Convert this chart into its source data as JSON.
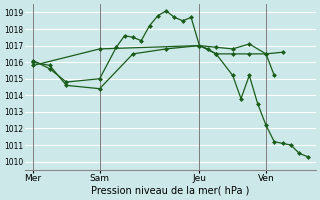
{
  "xlabel": "Pression niveau de la mer( hPa )",
  "bg_color": "#cce8e8",
  "grid_color": "#ffffff",
  "line_color": "#1a5c1a",
  "ylim": [
    1009.5,
    1019.5
  ],
  "yticks": [
    1010,
    1011,
    1012,
    1013,
    1014,
    1015,
    1016,
    1017,
    1018,
    1019
  ],
  "xtick_labels": [
    "Mer",
    "Sam",
    "Jeu",
    "Ven"
  ],
  "xtick_positions": [
    0,
    4,
    10,
    14
  ],
  "xlim": [
    -0.5,
    17
  ],
  "vline_positions": [
    0,
    4,
    10,
    14
  ],
  "vline_color": "#666666",
  "series1_x": [
    0,
    1,
    2,
    4,
    5,
    5.5,
    6,
    6.5,
    7,
    7.5,
    8,
    8.5,
    9,
    9.5,
    10,
    10.5,
    11,
    12,
    13,
    14,
    14.5
  ],
  "series1_y": [
    1016.1,
    1015.6,
    1014.8,
    1015.0,
    1016.9,
    1017.6,
    1017.5,
    1017.3,
    1018.2,
    1018.8,
    1019.1,
    1018.7,
    1018.5,
    1018.7,
    1017.0,
    1016.8,
    1016.5,
    1016.5,
    1016.5,
    1016.5,
    1015.2
  ],
  "series2_x": [
    0,
    1,
    2,
    4,
    6,
    8,
    10,
    11,
    12,
    13,
    14,
    15
  ],
  "series2_y": [
    1016.0,
    1015.8,
    1014.6,
    1014.4,
    1016.5,
    1016.8,
    1017.0,
    1016.9,
    1016.8,
    1017.1,
    1016.5,
    1016.6
  ],
  "series3_x": [
    0,
    4,
    10,
    11,
    12,
    12.5,
    13,
    13.5,
    14,
    14.5,
    15,
    15.5,
    16,
    16.5
  ],
  "series3_y": [
    1015.8,
    1016.8,
    1017.0,
    1016.5,
    1015.2,
    1013.8,
    1015.2,
    1013.5,
    1012.2,
    1011.2,
    1011.1,
    1011.0,
    1010.5,
    1010.3
  ]
}
